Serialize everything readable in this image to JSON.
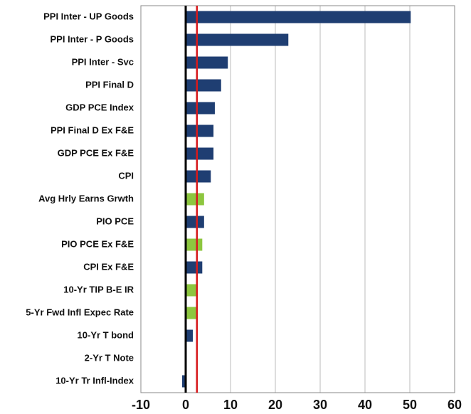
{
  "chart_data": {
    "type": "hbar",
    "categories": [
      "PPI Inter - UP Goods",
      "PPI Inter - P Goods",
      "PPI Inter - Svc",
      "PPI Final D",
      "GDP PCE Index",
      "PPI Final D Ex F&E",
      "GDP PCE Ex F&E",
      "CPI",
      "Avg Hrly Earns Grwth",
      "PIO PCE",
      "PIO PCE Ex F&E",
      "CPI Ex F&E",
      "10-Yr TIP B-E IR",
      "5-Yr Fwd Infl Expec Rate",
      "10-Yr T bond",
      "2-Yr T Note",
      "10-Yr Tr Infl-Index"
    ],
    "values": [
      50.2,
      22.9,
      9.4,
      7.9,
      6.5,
      6.2,
      6.2,
      5.6,
      4.1,
      4.1,
      3.7,
      3.7,
      2.5,
      2.5,
      1.6,
      0,
      -0.8
    ],
    "colors": [
      "#1f3e72",
      "#1f3e72",
      "#1f3e72",
      "#1f3e72",
      "#1f3e72",
      "#1f3e72",
      "#1f3e72",
      "#1f3e72",
      "#8dc63f",
      "#1f3e72",
      "#8dc63f",
      "#1f3e72",
      "#8dc63f",
      "#8dc63f",
      "#1f3e72",
      "#1f3e72",
      "#1f3e72"
    ],
    "xlim": [
      -10,
      60
    ],
    "xticks": [
      -10,
      0,
      10,
      20,
      30,
      40,
      50,
      60
    ],
    "reference_line": 2.5,
    "reference_color": "#d7191c",
    "zero_line_color": "#000000",
    "grid": true
  }
}
